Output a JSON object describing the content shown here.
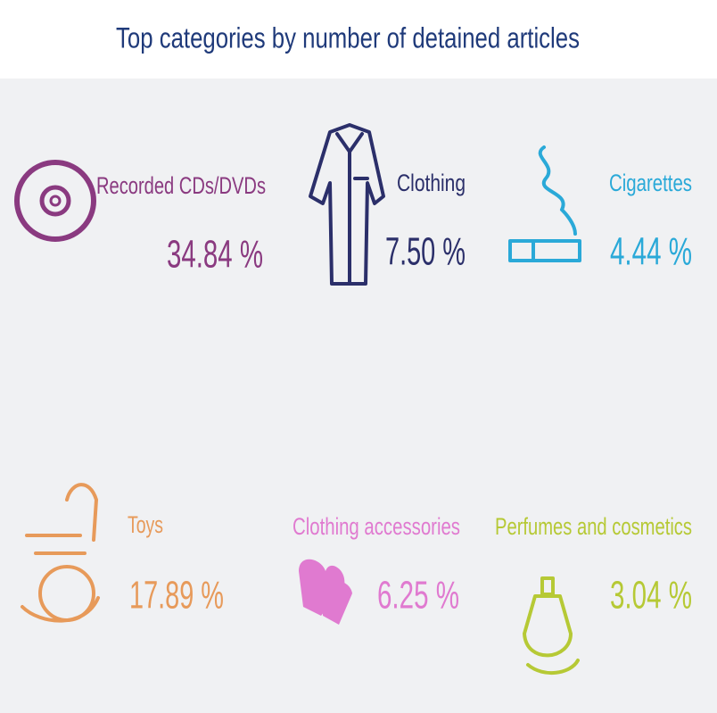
{
  "header": {
    "title": "Top categories by number of detained articles"
  },
  "items": [
    {
      "label": "Recorded CDs/DVDs",
      "value": "34.84 %",
      "color": "#8a3a80"
    },
    {
      "label": "Clothing",
      "value": "7.50 %",
      "color": "#2b2f6a"
    },
    {
      "label": "Cigarettes",
      "value": "4.44 %",
      "color": "#2aa9d8"
    },
    {
      "label": "Toys",
      "value": "17.89 %",
      "color": "#e79a5a"
    },
    {
      "label": "Clothing accessories",
      "value": "6.25 %",
      "color": "#e07ad0"
    },
    {
      "label": "Perfumes and cosmetics",
      "value": "3.04 %",
      "color": "#b6c935"
    }
  ]
}
